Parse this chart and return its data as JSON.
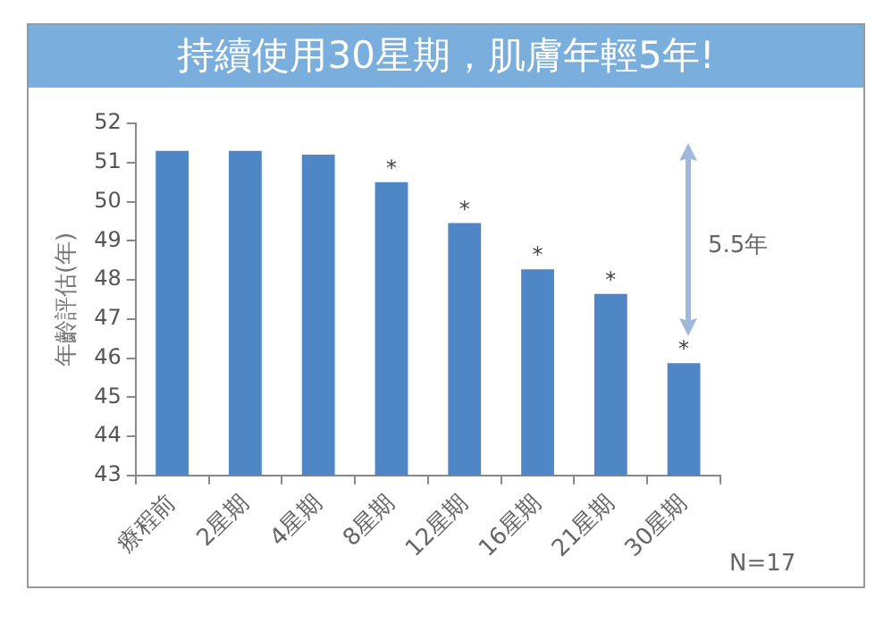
{
  "chart_data": {
    "type": "bar",
    "title": "持續使用30星期，肌膚年輕5年!",
    "ylabel": "年齡評估(年)",
    "categories": [
      "療程前",
      "2星期",
      "4星期",
      "8星期",
      "12星期",
      "16星期",
      "21星期",
      "30星期"
    ],
    "values": [
      51.3,
      51.3,
      51.2,
      50.5,
      49.45,
      48.27,
      47.64,
      45.87
    ],
    "color": "#4f86c6",
    "ylim": [
      43,
      52
    ],
    "yticks": [
      43,
      44,
      45,
      46,
      47,
      48,
      49,
      50,
      51,
      52
    ],
    "grid": false,
    "legend": false,
    "annotations": [
      {
        "text": "*",
        "x": "8星期",
        "y": 50.5
      },
      {
        "text": "*",
        "x": "12星期",
        "y": 49.45
      },
      {
        "text": "*",
        "x": "16星期",
        "y": 48.27
      },
      {
        "text": "*",
        "x": "21星期",
        "y": 47.64
      },
      {
        "text": "*",
        "x": "30星期",
        "y": 45.87
      },
      "5.5年",
      "N=17"
    ]
  }
}
